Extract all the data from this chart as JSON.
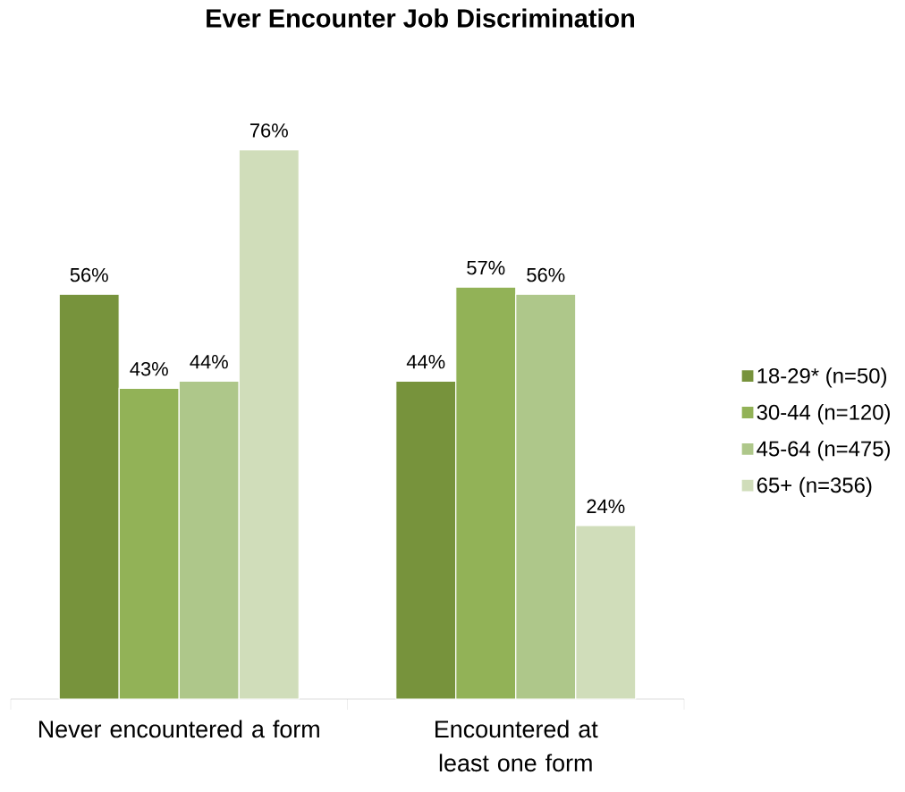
{
  "chart_data": {
    "type": "bar",
    "title": "Ever Encounter Job Discrimination",
    "categories": [
      "Never encountered a form",
      "Encountered at least one form"
    ],
    "series": [
      {
        "name": "18-29* (n=50)",
        "color": "#77933c",
        "values": [
          56,
          44
        ],
        "value_labels": [
          "56%",
          "44%"
        ]
      },
      {
        "name": "30-44 (n=120)",
        "color": "#92b257",
        "values": [
          43,
          57
        ],
        "value_labels": [
          "43%",
          "57%"
        ]
      },
      {
        "name": "45-64 (n=475)",
        "color": "#aec78a",
        "values": [
          44,
          56
        ],
        "value_labels": [
          "44%",
          "56%"
        ]
      },
      {
        "name": "65+ (n=356)",
        "color": "#d0ddba",
        "values": [
          76,
          24
        ],
        "value_labels": [
          "76%",
          "24%"
        ]
      }
    ],
    "legend": "right"
  }
}
